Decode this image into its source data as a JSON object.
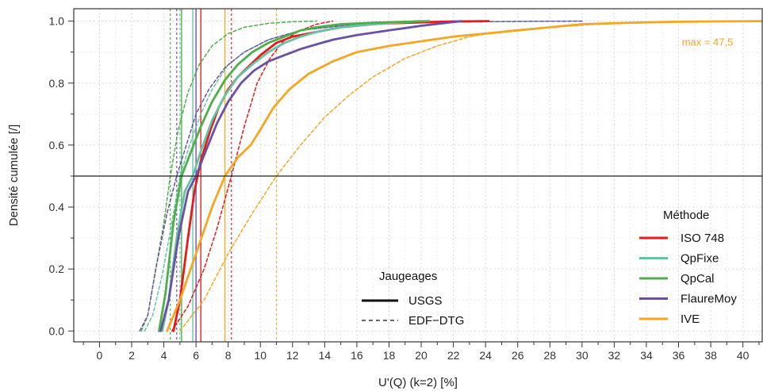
{
  "chart_data": {
    "type": "line",
    "title": "",
    "xlabel": "U'(Q) (k=2) [%]",
    "ylabel": "Densité cumulée [/]",
    "xlim": [
      -1.6,
      41.2
    ],
    "ylim": [
      -0.035,
      1.04
    ],
    "x_ticks": [
      0,
      2,
      4,
      6,
      8,
      10,
      12,
      14,
      16,
      18,
      20,
      22,
      24,
      26,
      28,
      30,
      32,
      34,
      36,
      38,
      40
    ],
    "y_ticks": [
      0.0,
      0.2,
      0.4,
      0.6,
      0.8,
      1.0
    ],
    "grid": true,
    "hline": 0.5,
    "legend_method": {
      "title": "Méthode",
      "position": "right",
      "entries": [
        {
          "label": "ISO 748",
          "color": "#e41a1c"
        },
        {
          "label": "QpFixe",
          "color": "#66c2a5"
        },
        {
          "label": "QpCal",
          "color": "#4daf4a"
        },
        {
          "label": "FlaureMoy",
          "color": "#6a51a3"
        },
        {
          "label": "IVE",
          "color": "#f5a623"
        }
      ]
    },
    "legend_jaugeages": {
      "title": "Jaugeages",
      "position": "bottom-center",
      "entries": [
        {
          "label": "USGS",
          "style": "solid"
        },
        {
          "label": "EDF−DTG",
          "style": "dashed"
        }
      ]
    },
    "annotation": {
      "text": "max = 47,5",
      "color": "#f5a623",
      "x": 37.8,
      "y": 0.965
    },
    "series": [
      {
        "method": "ISO 748",
        "gauging": "USGS",
        "color": "#e41a1c",
        "style": "solid",
        "x": [
          4.6,
          5.0,
          5.5,
          5.9,
          6.3,
          6.9,
          7.4,
          8.0,
          8.6,
          9.2,
          10.0,
          11.0,
          12.0,
          13.0,
          14.0,
          15.0,
          16.0,
          17.0,
          18.0,
          20.0,
          22.0,
          24.2
        ],
        "y": [
          0.0,
          0.1,
          0.3,
          0.45,
          0.55,
          0.65,
          0.72,
          0.78,
          0.82,
          0.85,
          0.89,
          0.93,
          0.95,
          0.96,
          0.97,
          0.98,
          0.985,
          0.99,
          0.993,
          0.996,
          0.999,
          1.0
        ],
        "median": 6.3
      },
      {
        "method": "QpFixe",
        "gauging": "USGS",
        "color": "#66c2a5",
        "style": "solid",
        "x": [
          3.9,
          4.3,
          4.8,
          5.3,
          5.8,
          6.3,
          7.0,
          7.8,
          8.6,
          9.5,
          10.5,
          11.5,
          12.5,
          13.5,
          15.0,
          17.0,
          20.0
        ],
        "y": [
          0.0,
          0.1,
          0.3,
          0.45,
          0.5,
          0.58,
          0.68,
          0.76,
          0.82,
          0.86,
          0.9,
          0.93,
          0.95,
          0.965,
          0.98,
          0.99,
          1.0
        ],
        "median": 5.8
      },
      {
        "method": "QpCal",
        "gauging": "USGS",
        "color": "#4daf4a",
        "style": "solid",
        "x": [
          3.7,
          4.1,
          4.6,
          5.1,
          5.7,
          6.3,
          7.0,
          7.8,
          8.6,
          9.5,
          10.5,
          11.5,
          12.5,
          13.5,
          15.0,
          17.0,
          20.5
        ],
        "y": [
          0.0,
          0.12,
          0.35,
          0.5,
          0.58,
          0.66,
          0.74,
          0.81,
          0.86,
          0.9,
          0.93,
          0.95,
          0.97,
          0.98,
          0.99,
          0.995,
          1.0
        ],
        "median": 5.1
      },
      {
        "method": "FlaureMoy",
        "gauging": "USGS",
        "color": "#6a51a3",
        "style": "solid",
        "x": [
          3.8,
          4.3,
          4.9,
          5.5,
          6.0,
          6.6,
          7.3,
          8.0,
          8.8,
          9.6,
          10.5,
          11.5,
          12.5,
          13.5,
          14.5,
          16.0,
          18.0,
          20.0,
          22.5
        ],
        "y": [
          0.0,
          0.1,
          0.3,
          0.45,
          0.5,
          0.58,
          0.67,
          0.74,
          0.8,
          0.84,
          0.87,
          0.89,
          0.91,
          0.925,
          0.94,
          0.955,
          0.97,
          0.985,
          1.0
        ],
        "median": 6.0
      },
      {
        "method": "IVE",
        "gauging": "USGS",
        "color": "#f5a623",
        "style": "solid",
        "x": [
          4.2,
          5.0,
          6.0,
          7.0,
          7.8,
          8.6,
          9.4,
          10.0,
          10.8,
          11.8,
          13.0,
          14.5,
          16.0,
          18.0,
          20.0,
          22.0,
          24.0,
          26.0,
          28.0,
          30.0,
          33.0,
          36.0,
          41.2
        ],
        "y": [
          0.0,
          0.1,
          0.25,
          0.4,
          0.5,
          0.56,
          0.6,
          0.65,
          0.72,
          0.78,
          0.83,
          0.87,
          0.9,
          0.92,
          0.935,
          0.95,
          0.96,
          0.97,
          0.98,
          0.99,
          0.995,
          0.998,
          1.0
        ],
        "median": 7.8
      },
      {
        "method": "ISO 748",
        "gauging": "EDF-DTG",
        "color": "#e41a1c",
        "style": "dashed",
        "x": [
          4.5,
          5.5,
          6.5,
          7.3,
          8.2,
          9.0,
          9.8,
          10.6,
          11.5,
          12.5,
          13.5,
          14.5
        ],
        "y": [
          0.0,
          0.08,
          0.2,
          0.33,
          0.5,
          0.66,
          0.8,
          0.88,
          0.94,
          0.97,
          0.99,
          1.0
        ],
        "median": 8.2
      },
      {
        "method": "QpFixe",
        "gauging": "EDF-DTG",
        "color": "#66c2a5",
        "style": "dashed",
        "x": [
          2.8,
          3.3,
          3.9,
          4.5,
          5.0,
          5.6,
          6.3,
          7.0,
          8.0,
          9.0,
          10.5,
          12.5,
          15.0,
          18.0,
          22.0,
          26.0,
          30.0
        ],
        "y": [
          0.0,
          0.05,
          0.18,
          0.35,
          0.5,
          0.6,
          0.7,
          0.78,
          0.86,
          0.9,
          0.94,
          0.97,
          0.985,
          0.993,
          0.997,
          0.999,
          1.0
        ],
        "median": 5.0
      },
      {
        "method": "QpCal",
        "gauging": "EDF-DTG",
        "color": "#4daf4a",
        "style": "dashed",
        "x": [
          2.6,
          3.0,
          3.5,
          4.0,
          4.4,
          4.9,
          5.5,
          6.2,
          7.0,
          8.0,
          9.0,
          10.5,
          12.0,
          13.5
        ],
        "y": [
          0.0,
          0.05,
          0.2,
          0.35,
          0.5,
          0.65,
          0.77,
          0.86,
          0.92,
          0.96,
          0.98,
          0.993,
          0.998,
          1.0
        ],
        "median": 4.4
      },
      {
        "method": "FlaureMoy",
        "gauging": "EDF-DTG",
        "color": "#6a51a3",
        "style": "dashed",
        "x": [
          2.5,
          3.0,
          3.5,
          4.2,
          4.8,
          5.4,
          6.0,
          6.8,
          7.8,
          9.0,
          10.5,
          12.5,
          15.0,
          18.0,
          22.0,
          26.0,
          30.0
        ],
        "y": [
          0.0,
          0.05,
          0.2,
          0.38,
          0.5,
          0.6,
          0.7,
          0.78,
          0.85,
          0.9,
          0.94,
          0.97,
          0.985,
          0.993,
          0.997,
          0.999,
          1.0
        ],
        "median": 4.8
      },
      {
        "method": "IVE",
        "gauging": "EDF-DTG",
        "color": "#f5a623",
        "style": "dashed",
        "x": [
          5.0,
          6.5,
          8.0,
          9.5,
          11.0,
          12.5,
          14.0,
          15.5,
          17.0,
          19.0,
          21.0,
          23.0,
          25.5,
          28.0,
          31.0,
          34.0,
          38.0,
          41.2
        ],
        "y": [
          0.0,
          0.1,
          0.25,
          0.38,
          0.5,
          0.6,
          0.69,
          0.76,
          0.82,
          0.88,
          0.92,
          0.95,
          0.97,
          0.98,
          0.99,
          0.995,
          0.998,
          0.999
        ],
        "median": 11.0
      }
    ]
  }
}
